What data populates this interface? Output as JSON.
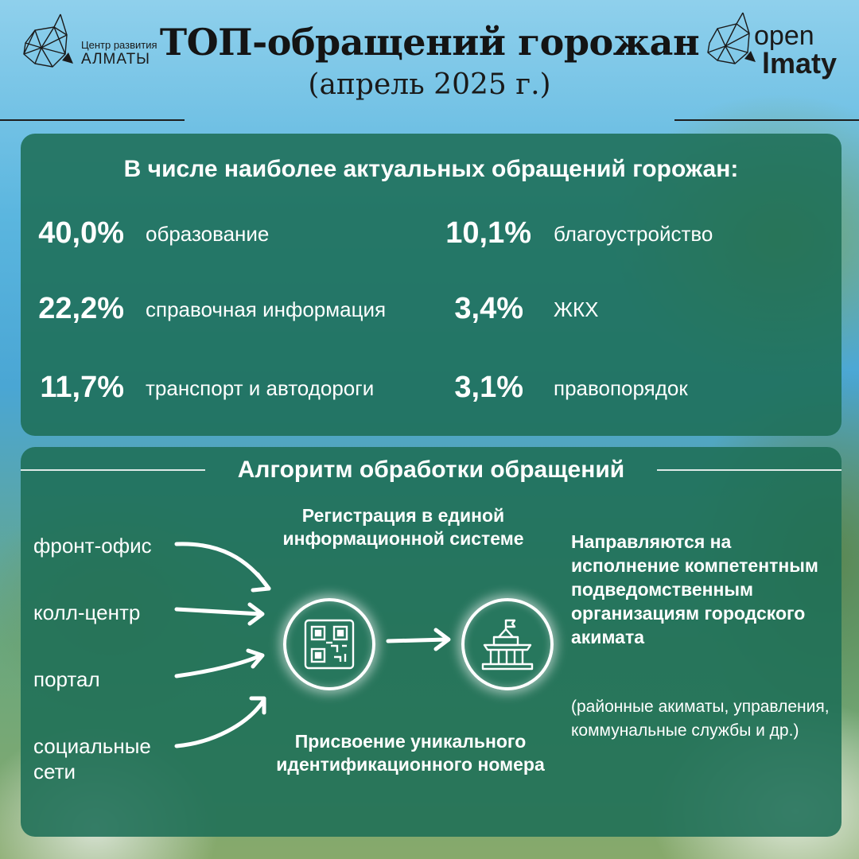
{
  "header": {
    "title": "ТОП-обращений горожан",
    "subtitle": "(апрель 2025 г.)",
    "logo_left": {
      "line1": "Центр развития",
      "line2": "АЛМАТЫ"
    },
    "logo_right": {
      "line1": "open",
      "line2": "lmaty"
    }
  },
  "top_panel": {
    "heading": "В числе наиболее актуальных обращений горожан:",
    "stats": [
      {
        "percent": "40,0%",
        "label": "образование"
      },
      {
        "percent": "22,2%",
        "label": "справочная информация"
      },
      {
        "percent": "11,7%",
        "label": "транспорт и автодороги"
      },
      {
        "percent": "10,1%",
        "label": "благоустройство"
      },
      {
        "percent": "3,4%",
        "label": "ЖКХ"
      },
      {
        "percent": "3,1%",
        "label": "правопорядок"
      }
    ]
  },
  "algorithm": {
    "heading": "Алгоритм обработки обращений",
    "sources": [
      "фронт-офис",
      "колл-центр",
      "портал",
      "социальные сети"
    ],
    "step_registration": "Регистрация в единой информационной системе",
    "step_id": "Присвоение уникального идентификационного номера",
    "destination": "Направляются на исполнение компетентным подведомственным организациям городского акимата",
    "destination_note": "(районные акиматы, управления, коммунальные службы и др.)",
    "icons": {
      "qr": "qr-code-icon",
      "building": "government-building-icon"
    }
  },
  "colors": {
    "panel": "#1e6e56",
    "text": "#ffffff",
    "title": "#141414"
  }
}
